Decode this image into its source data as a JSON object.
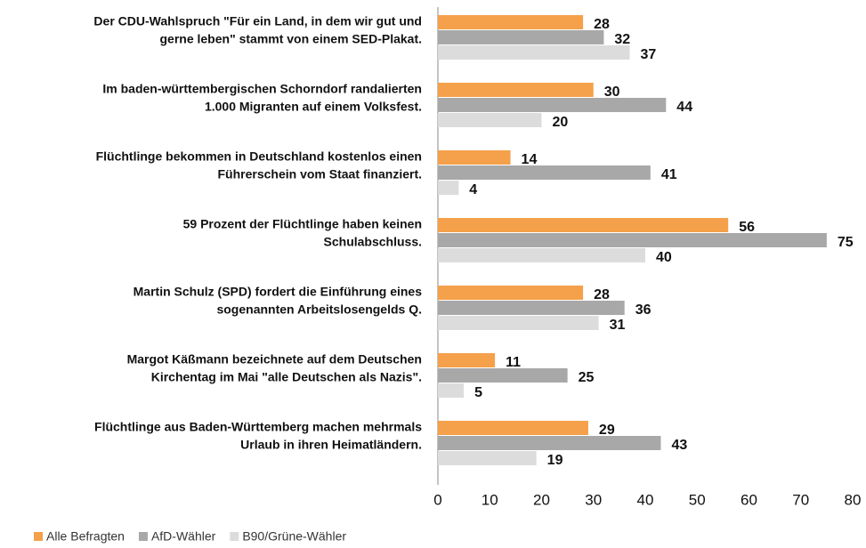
{
  "chart_data": {
    "type": "bar",
    "orientation": "horizontal",
    "categories": [
      [
        "Der CDU-Wahlspruch \"Für ein Land, in dem wir gut und",
        "gerne leben\" stammt von einem SED-Plakat."
      ],
      [
        "Im baden-württembergischen Schorndorf randalierten",
        "1.000 Migranten auf einem Volksfest."
      ],
      [
        "Flüchtlinge bekommen in Deutschland kostenlos einen",
        "Führerschein vom Staat finanziert."
      ],
      [
        "59 Prozent der Flüchtlinge haben keinen",
        "Schulabschluss."
      ],
      [
        "Martin Schulz (SPD) fordert die Einführung eines",
        "sogenannten Arbeitslosengelds Q."
      ],
      [
        "Margot Käßmann bezeichnete auf dem Deutschen",
        "Kirchentag im Mai \"alle Deutschen als Nazis\"."
      ],
      [
        "Flüchtlinge aus Baden-Württemberg machen mehrmals",
        "Urlaub in ihren Heimatländern."
      ]
    ],
    "series": [
      {
        "name": "Alle Befragten",
        "color": "#f5a04a",
        "values": [
          28,
          30,
          14,
          56,
          28,
          11,
          29
        ]
      },
      {
        "name": "AfD-Wähler",
        "color": "#a8a8a8",
        "values": [
          32,
          44,
          41,
          75,
          36,
          25,
          43
        ]
      },
      {
        "name": "B90/Grüne-Wähler",
        "color": "#dcdcdc",
        "values": [
          37,
          20,
          4,
          40,
          31,
          5,
          19
        ]
      }
    ],
    "xlim": [
      0,
      80
    ],
    "xticks": [
      0,
      10,
      20,
      30,
      40,
      50,
      60,
      70,
      80
    ],
    "grid": false
  }
}
